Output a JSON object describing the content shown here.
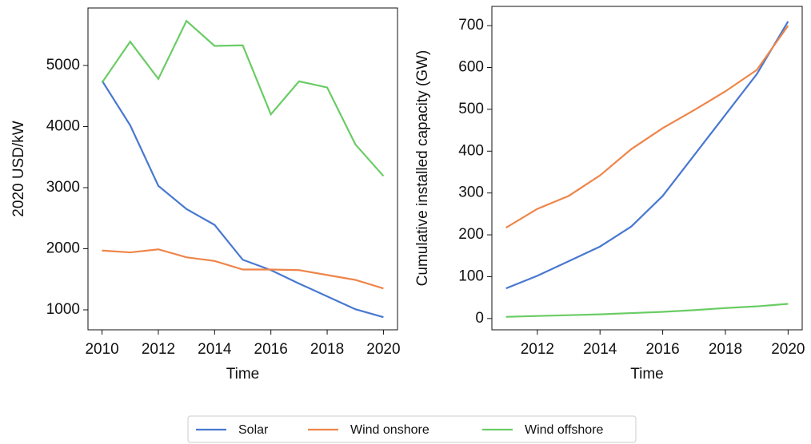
{
  "chart_data": [
    {
      "type": "line",
      "xlabel": "Time",
      "ylabel": "2020 USD/kW",
      "x": [
        2010,
        2011,
        2012,
        2013,
        2014,
        2015,
        2016,
        2017,
        2018,
        2019,
        2020
      ],
      "xlim": [
        2009.5,
        2020.5
      ],
      "xticks": [
        2010,
        2012,
        2014,
        2016,
        2018,
        2020
      ],
      "ylim": [
        673,
        5941
      ],
      "yticks": [
        1000,
        2000,
        3000,
        4000,
        5000
      ],
      "series": [
        {
          "name": "Solar",
          "color": "#4878d0",
          "values": [
            4750,
            4020,
            3030,
            2650,
            2390,
            1820,
            1650,
            1430,
            1220,
            1010,
            880
          ]
        },
        {
          "name": "Wind onshore",
          "color": "#ee854a",
          "values": [
            1970,
            1940,
            1990,
            1860,
            1800,
            1660,
            1660,
            1650,
            1570,
            1490,
            1350
          ]
        },
        {
          "name": "Wind offshore",
          "color": "#6acc64",
          "values": [
            4720,
            5390,
            4780,
            5730,
            5320,
            5330,
            4200,
            4740,
            4640,
            3710,
            3190
          ]
        }
      ]
    },
    {
      "type": "line",
      "xlabel": "Time",
      "ylabel": "Cumulative installed capacity (GW)",
      "x": [
        2011,
        2012,
        2013,
        2014,
        2015,
        2016,
        2017,
        2018,
        2019,
        2020
      ],
      "xlim": [
        2010.55,
        2020.45
      ],
      "xticks": [
        2012,
        2014,
        2016,
        2018,
        2020
      ],
      "ylim": [
        -27,
        746
      ],
      "yticks": [
        0,
        100,
        200,
        300,
        400,
        500,
        600,
        700
      ],
      "series": [
        {
          "name": "Solar",
          "color": "#4878d0",
          "values": [
            72,
            102,
            137,
            172,
            220,
            293,
            390,
            487,
            584,
            710
          ]
        },
        {
          "name": "Wind onshore",
          "color": "#ee854a",
          "values": [
            217,
            262,
            293,
            342,
            405,
            455,
            498,
            543,
            594,
            700
          ]
        },
        {
          "name": "Wind offshore",
          "color": "#6acc64",
          "values": [
            4,
            6,
            8,
            10,
            13,
            16,
            20,
            25,
            29,
            35
          ]
        }
      ]
    }
  ]
}
